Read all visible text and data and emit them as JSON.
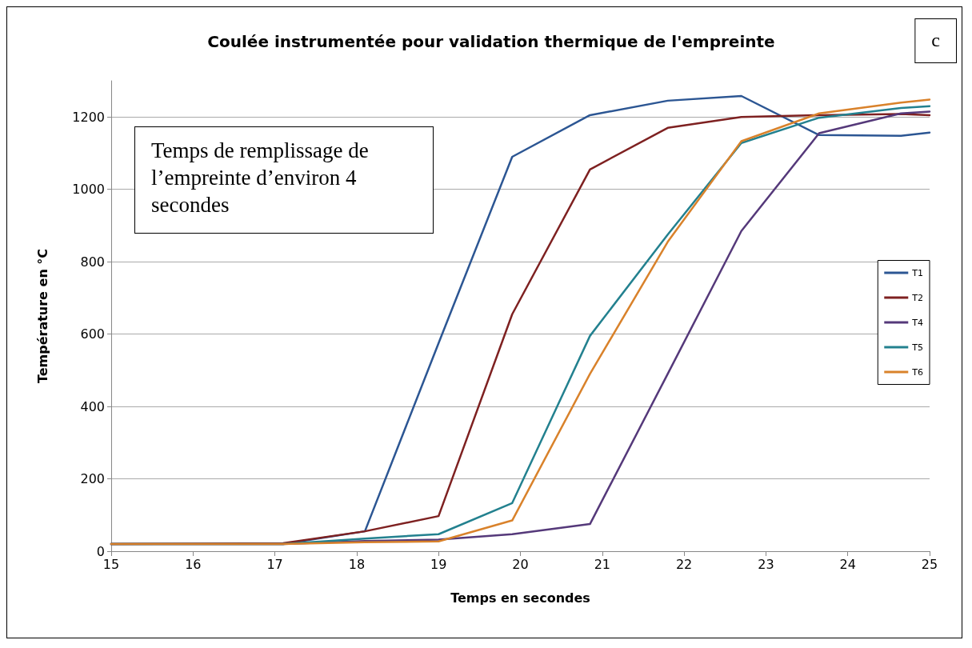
{
  "chart_data": {
    "type": "line",
    "title": "Coulée instrumentée pour validation thermique de l'empreinte",
    "xlabel": "Temps en secondes",
    "ylabel": "Température en °C",
    "annotations": [
      "Temps de remplissage de l’empreinte d’environ 4 secondes",
      "c"
    ],
    "x": [
      15,
      17.1,
      18.1,
      19,
      19.9,
      20.85,
      21.8,
      22.7,
      23.65,
      24.65,
      25
    ],
    "series": [
      {
        "name": "T1",
        "color": "#2c5693",
        "values": [
          20,
          20,
          55,
          575,
          1090,
          1205,
          1245,
          1258,
          1150,
          1148,
          1157
        ]
      },
      {
        "name": "T2",
        "color": "#7e2121",
        "values": [
          20,
          22,
          55,
          97,
          655,
          1055,
          1170,
          1200,
          1205,
          1208,
          1205
        ]
      },
      {
        "name": "T4",
        "color": "#55397a",
        "values": [
          20,
          20,
          28,
          32,
          47,
          75,
          490,
          885,
          1155,
          1210,
          1215
        ]
      },
      {
        "name": "T5",
        "color": "#23818f",
        "values": [
          20,
          20,
          35,
          47,
          133,
          595,
          875,
          1128,
          1198,
          1225,
          1230
        ]
      },
      {
        "name": "T6",
        "color": "#d9822b",
        "values": [
          20,
          20,
          25,
          27,
          85,
          490,
          855,
          1133,
          1210,
          1240,
          1248
        ]
      }
    ],
    "xlim": [
      15,
      25
    ],
    "xticks": [
      15,
      16,
      17,
      18,
      19,
      20,
      21,
      22,
      23,
      24,
      25
    ],
    "ylim": [
      0,
      1300
    ],
    "yticks": [
      0,
      200,
      400,
      600,
      800,
      1000,
      1200
    ],
    "grid": "y",
    "legend": "right",
    "marker": "none",
    "line_style": "solid"
  }
}
